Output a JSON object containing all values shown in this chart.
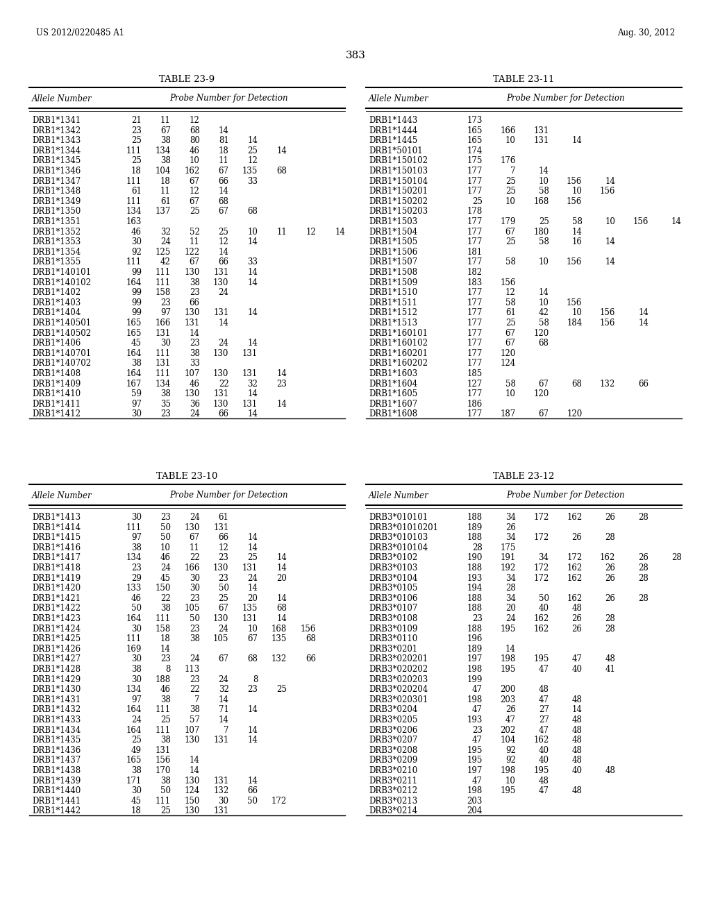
{
  "page_number": "383",
  "patent_left": "US 2012/0220485 A1",
  "patent_right": "Aug. 30, 2012",
  "tables": [
    {
      "title": "TABLE 23-9",
      "rows": [
        [
          "DRB1*1341",
          "21",
          "11",
          "12",
          "",
          "",
          "",
          "",
          ""
        ],
        [
          "DRB1*1342",
          "23",
          "67",
          "68",
          "14",
          "",
          "",
          "",
          ""
        ],
        [
          "DRB1*1343",
          "25",
          "38",
          "80",
          "81",
          "14",
          "",
          "",
          ""
        ],
        [
          "DRB1*1344",
          "111",
          "134",
          "46",
          "18",
          "25",
          "14",
          "",
          ""
        ],
        [
          "DRB1*1345",
          "25",
          "38",
          "10",
          "11",
          "12",
          "",
          "",
          ""
        ],
        [
          "DRB1*1346",
          "18",
          "104",
          "162",
          "67",
          "135",
          "68",
          "",
          ""
        ],
        [
          "DRB1*1347",
          "111",
          "18",
          "67",
          "66",
          "33",
          "",
          "",
          ""
        ],
        [
          "DRB1*1348",
          "61",
          "11",
          "12",
          "14",
          "",
          "",
          "",
          ""
        ],
        [
          "DRB1*1349",
          "111",
          "61",
          "67",
          "68",
          "",
          "",
          "",
          ""
        ],
        [
          "DRB1*1350",
          "134",
          "137",
          "25",
          "67",
          "68",
          "",
          "",
          ""
        ],
        [
          "DRB1*1351",
          "163",
          "",
          "",
          "",
          "",
          "",
          "",
          ""
        ],
        [
          "DRB1*1352",
          "46",
          "32",
          "52",
          "25",
          "10",
          "11",
          "12",
          "14"
        ],
        [
          "DRB1*1353",
          "30",
          "24",
          "11",
          "12",
          "14",
          "",
          "",
          ""
        ],
        [
          "DRB1*1354",
          "92",
          "125",
          "122",
          "14",
          "",
          "",
          "",
          ""
        ],
        [
          "DRB1*1355",
          "111",
          "42",
          "67",
          "66",
          "33",
          "",
          "",
          ""
        ],
        [
          "DRB1*140101",
          "99",
          "111",
          "130",
          "131",
          "14",
          "",
          "",
          ""
        ],
        [
          "DRB1*140102",
          "164",
          "111",
          "38",
          "130",
          "14",
          "",
          "",
          ""
        ],
        [
          "DRB1*1402",
          "99",
          "158",
          "23",
          "24",
          "",
          "",
          "",
          ""
        ],
        [
          "DRB1*1403",
          "99",
          "23",
          "66",
          "",
          "",
          "",
          "",
          ""
        ],
        [
          "DRB1*1404",
          "99",
          "97",
          "130",
          "131",
          "14",
          "",
          "",
          ""
        ],
        [
          "DRB1*140501",
          "165",
          "166",
          "131",
          "14",
          "",
          "",
          "",
          ""
        ],
        [
          "DRB1*140502",
          "165",
          "131",
          "14",
          "",
          "",
          "",
          "",
          ""
        ],
        [
          "DRB1*1406",
          "45",
          "30",
          "23",
          "24",
          "14",
          "",
          "",
          ""
        ],
        [
          "DRB1*140701",
          "164",
          "111",
          "38",
          "130",
          "131",
          "",
          "",
          ""
        ],
        [
          "DRB1*140702",
          "38",
          "131",
          "33",
          "",
          "",
          "",
          "",
          ""
        ],
        [
          "DRB1*1408",
          "164",
          "111",
          "107",
          "130",
          "131",
          "14",
          "",
          ""
        ],
        [
          "DRB1*1409",
          "167",
          "134",
          "46",
          "22",
          "32",
          "23",
          "",
          ""
        ],
        [
          "DRB1*1410",
          "59",
          "38",
          "130",
          "131",
          "14",
          "",
          "",
          ""
        ],
        [
          "DRB1*1411",
          "97",
          "35",
          "36",
          "130",
          "131",
          "14",
          "",
          ""
        ],
        [
          "DRB1*1412",
          "30",
          "23",
          "24",
          "66",
          "14",
          "",
          "",
          ""
        ]
      ]
    },
    {
      "title": "TABLE 23-11",
      "rows": [
        [
          "DRB1*1443",
          "173",
          "",
          "",
          "",
          "",
          "",
          ""
        ],
        [
          "DRB1*1444",
          "165",
          "166",
          "131",
          "",
          "",
          "",
          ""
        ],
        [
          "DRB1*1445",
          "165",
          "10",
          "131",
          "14",
          "",
          "",
          ""
        ],
        [
          "DRB1*50101",
          "174",
          "",
          "",
          "",
          "",
          "",
          ""
        ],
        [
          "DRB1*150102",
          "175",
          "176",
          "",
          "",
          "",
          "",
          ""
        ],
        [
          "DRB1*150103",
          "177",
          "7",
          "14",
          "",
          "",
          "",
          ""
        ],
        [
          "DRB1*150104",
          "177",
          "25",
          "10",
          "156",
          "14",
          "",
          ""
        ],
        [
          "DRB1*150201",
          "177",
          "25",
          "58",
          "10",
          "156",
          "",
          ""
        ],
        [
          "DRB1*150202",
          "25",
          "10",
          "168",
          "156",
          "",
          "",
          ""
        ],
        [
          "DRB1*150203",
          "178",
          "",
          "",
          "",
          "",
          "",
          ""
        ],
        [
          "DRB1*1503",
          "177",
          "179",
          "25",
          "58",
          "10",
          "156",
          "14"
        ],
        [
          "DRB1*1504",
          "177",
          "67",
          "180",
          "14",
          "",
          "",
          ""
        ],
        [
          "DRB1*1505",
          "177",
          "25",
          "58",
          "16",
          "14",
          "",
          ""
        ],
        [
          "DRB1*1506",
          "181",
          "",
          "",
          "",
          "",
          "",
          ""
        ],
        [
          "DRB1*1507",
          "177",
          "58",
          "10",
          "156",
          "14",
          "",
          ""
        ],
        [
          "DRB1*1508",
          "182",
          "",
          "",
          "",
          "",
          "",
          ""
        ],
        [
          "DRB1*1509",
          "183",
          "156",
          "",
          "",
          "",
          "",
          ""
        ],
        [
          "DRB1*1510",
          "177",
          "12",
          "14",
          "",
          "",
          "",
          ""
        ],
        [
          "DRB1*1511",
          "177",
          "58",
          "10",
          "156",
          "",
          "",
          ""
        ],
        [
          "DRB1*1512",
          "177",
          "61",
          "42",
          "10",
          "156",
          "14",
          ""
        ],
        [
          "DRB1*1513",
          "177",
          "25",
          "58",
          "184",
          "156",
          "14",
          ""
        ],
        [
          "DRB1*160101",
          "177",
          "67",
          "120",
          "",
          "",
          "",
          ""
        ],
        [
          "DRB1*160102",
          "177",
          "67",
          "68",
          "",
          "",
          "",
          ""
        ],
        [
          "DRB1*160201",
          "177",
          "120",
          "",
          "",
          "",
          "",
          ""
        ],
        [
          "DRB1*160202",
          "177",
          "124",
          "",
          "",
          "",
          "",
          ""
        ],
        [
          "DRB1*1603",
          "185",
          "",
          "",
          "",
          "",
          "",
          ""
        ],
        [
          "DRB1*1604",
          "127",
          "58",
          "67",
          "68",
          "132",
          "66",
          ""
        ],
        [
          "DRB1*1605",
          "177",
          "10",
          "120",
          "",
          "",
          "",
          ""
        ],
        [
          "DRB1*1607",
          "186",
          "",
          "",
          "",
          "",
          "",
          ""
        ],
        [
          "DRB1*1608",
          "177",
          "187",
          "67",
          "120",
          "",
          "",
          ""
        ]
      ]
    },
    {
      "title": "TABLE 23-10",
      "rows": [
        [
          "DRB1*1413",
          "30",
          "23",
          "24",
          "61",
          "",
          "",
          "",
          ""
        ],
        [
          "DRB1*1414",
          "111",
          "50",
          "130",
          "131",
          "",
          "",
          "",
          ""
        ],
        [
          "DRB1*1415",
          "97",
          "50",
          "67",
          "66",
          "14",
          "",
          "",
          ""
        ],
        [
          "DRB1*1416",
          "38",
          "10",
          "11",
          "12",
          "14",
          "",
          "",
          ""
        ],
        [
          "DRB1*1417",
          "134",
          "46",
          "22",
          "23",
          "25",
          "14",
          "",
          ""
        ],
        [
          "DRB1*1418",
          "23",
          "24",
          "166",
          "130",
          "131",
          "14",
          "",
          ""
        ],
        [
          "DRB1*1419",
          "29",
          "45",
          "30",
          "23",
          "24",
          "20",
          "",
          ""
        ],
        [
          "DRB1*1420",
          "133",
          "150",
          "30",
          "50",
          "14",
          "",
          "",
          ""
        ],
        [
          "DRB1*1421",
          "46",
          "22",
          "23",
          "25",
          "20",
          "14",
          "",
          ""
        ],
        [
          "DRB1*1422",
          "50",
          "38",
          "105",
          "67",
          "135",
          "68",
          "",
          ""
        ],
        [
          "DRB1*1423",
          "164",
          "111",
          "50",
          "130",
          "131",
          "14",
          "",
          ""
        ],
        [
          "DRB1*1424",
          "30",
          "158",
          "23",
          "24",
          "10",
          "168",
          "156",
          ""
        ],
        [
          "DRB1*1425",
          "111",
          "18",
          "38",
          "105",
          "67",
          "135",
          "68",
          ""
        ],
        [
          "DRB1*1426",
          "169",
          "14",
          "",
          "",
          "",
          "",
          "",
          ""
        ],
        [
          "DRB1*1427",
          "30",
          "23",
          "24",
          "67",
          "68",
          "132",
          "66",
          ""
        ],
        [
          "DRB1*1428",
          "38",
          "8",
          "113",
          "",
          "",
          "",
          "",
          ""
        ],
        [
          "DRB1*1429",
          "30",
          "188",
          "23",
          "24",
          "8",
          "",
          "",
          ""
        ],
        [
          "DRB1*1430",
          "134",
          "46",
          "22",
          "32",
          "23",
          "25",
          "",
          ""
        ],
        [
          "DRB1*1431",
          "97",
          "38",
          "7",
          "14",
          "",
          "",
          "",
          ""
        ],
        [
          "DRB1*1432",
          "164",
          "111",
          "38",
          "71",
          "14",
          "",
          "",
          ""
        ],
        [
          "DRB1*1433",
          "24",
          "25",
          "57",
          "14",
          "",
          "",
          "",
          ""
        ],
        [
          "DRB1*1434",
          "164",
          "111",
          "107",
          "7",
          "14",
          "",
          "",
          ""
        ],
        [
          "DRB1*1435",
          "25",
          "38",
          "130",
          "131",
          "14",
          "",
          "",
          ""
        ],
        [
          "DRB1*1436",
          "49",
          "131",
          "",
          "",
          "",
          "",
          "",
          ""
        ],
        [
          "DRB1*1437",
          "165",
          "156",
          "14",
          "",
          "",
          "",
          "",
          ""
        ],
        [
          "DRB1*1438",
          "38",
          "170",
          "14",
          "",
          "",
          "",
          "",
          ""
        ],
        [
          "DRB1*1439",
          "171",
          "38",
          "130",
          "131",
          "14",
          "",
          "",
          ""
        ],
        [
          "DRB1*1440",
          "30",
          "50",
          "124",
          "132",
          "66",
          "",
          "",
          ""
        ],
        [
          "DRB1*1441",
          "45",
          "111",
          "150",
          "30",
          "50",
          "172",
          "",
          ""
        ],
        [
          "DRB1*1442",
          "18",
          "25",
          "130",
          "131",
          "",
          "",
          "",
          ""
        ]
      ]
    },
    {
      "title": "TABLE 23-12",
      "rows": [
        [
          "DRB3*010101",
          "188",
          "34",
          "172",
          "162",
          "26",
          "28",
          ""
        ],
        [
          "DRB3*01010201",
          "189",
          "26",
          "",
          "",
          "",
          "",
          ""
        ],
        [
          "DRB3*010103",
          "188",
          "34",
          "172",
          "26",
          "28",
          "",
          ""
        ],
        [
          "DRB3*010104",
          "28",
          "175",
          "",
          "",
          "",
          "",
          ""
        ],
        [
          "DRB3*0102",
          "190",
          "191",
          "34",
          "172",
          "162",
          "26",
          "28"
        ],
        [
          "DRB3*0103",
          "188",
          "192",
          "172",
          "162",
          "26",
          "28",
          ""
        ],
        [
          "DRB3*0104",
          "193",
          "34",
          "172",
          "162",
          "26",
          "28",
          ""
        ],
        [
          "DRB3*0105",
          "194",
          "28",
          "",
          "",
          "",
          "",
          ""
        ],
        [
          "DRB3*0106",
          "188",
          "34",
          "50",
          "162",
          "26",
          "28",
          ""
        ],
        [
          "DRB3*0107",
          "188",
          "20",
          "40",
          "48",
          "",
          "",
          ""
        ],
        [
          "DRB3*0108",
          "23",
          "24",
          "162",
          "26",
          "28",
          "",
          ""
        ],
        [
          "DRB3*0109",
          "188",
          "195",
          "162",
          "26",
          "28",
          ""
        ],
        [
          "DRB3*0110",
          "196",
          "",
          "",
          "",
          "",
          "",
          ""
        ],
        [
          "DRB3*0201",
          "189",
          "14",
          "",
          "",
          "",
          "",
          ""
        ],
        [
          "DRB3*020201",
          "197",
          "198",
          "195",
          "47",
          "48",
          "",
          ""
        ],
        [
          "DRB3*020202",
          "198",
          "195",
          "47",
          "40",
          "41",
          "",
          ""
        ],
        [
          "DRB3*020203",
          "199",
          "",
          "",
          "",
          "",
          "",
          ""
        ],
        [
          "DRB3*020204",
          "47",
          "200",
          "48",
          "",
          "",
          "",
          ""
        ],
        [
          "DRB3*020301",
          "198",
          "203",
          "47",
          "48",
          "",
          "",
          ""
        ],
        [
          "DRB3*0204",
          "47",
          "26",
          "27",
          "14",
          "",
          "",
          ""
        ],
        [
          "DRB3*0205",
          "193",
          "47",
          "27",
          "48",
          "",
          "",
          ""
        ],
        [
          "DRB3*0206",
          "23",
          "202",
          "47",
          "48",
          "",
          "",
          ""
        ],
        [
          "DRB3*0207",
          "47",
          "104",
          "162",
          "48",
          "",
          "",
          ""
        ],
        [
          "DRB3*0208",
          "195",
          "92",
          "40",
          "48",
          "",
          "",
          ""
        ],
        [
          "DRB3*0209",
          "195",
          "92",
          "40",
          "48",
          "",
          "",
          ""
        ],
        [
          "DRB3*0210",
          "197",
          "198",
          "195",
          "40",
          "48",
          "",
          ""
        ],
        [
          "DRB3*0211",
          "47",
          "10",
          "48",
          "",
          "",
          "",
          ""
        ],
        [
          "DRB3*0212",
          "198",
          "195",
          "47",
          "48",
          "",
          "",
          ""
        ],
        [
          "DRB3*0213",
          "203",
          "",
          "",
          "",
          "",
          "",
          ""
        ],
        [
          "DRB3*0214",
          "204",
          "",
          "",
          "",
          "",
          "",
          ""
        ]
      ]
    }
  ]
}
